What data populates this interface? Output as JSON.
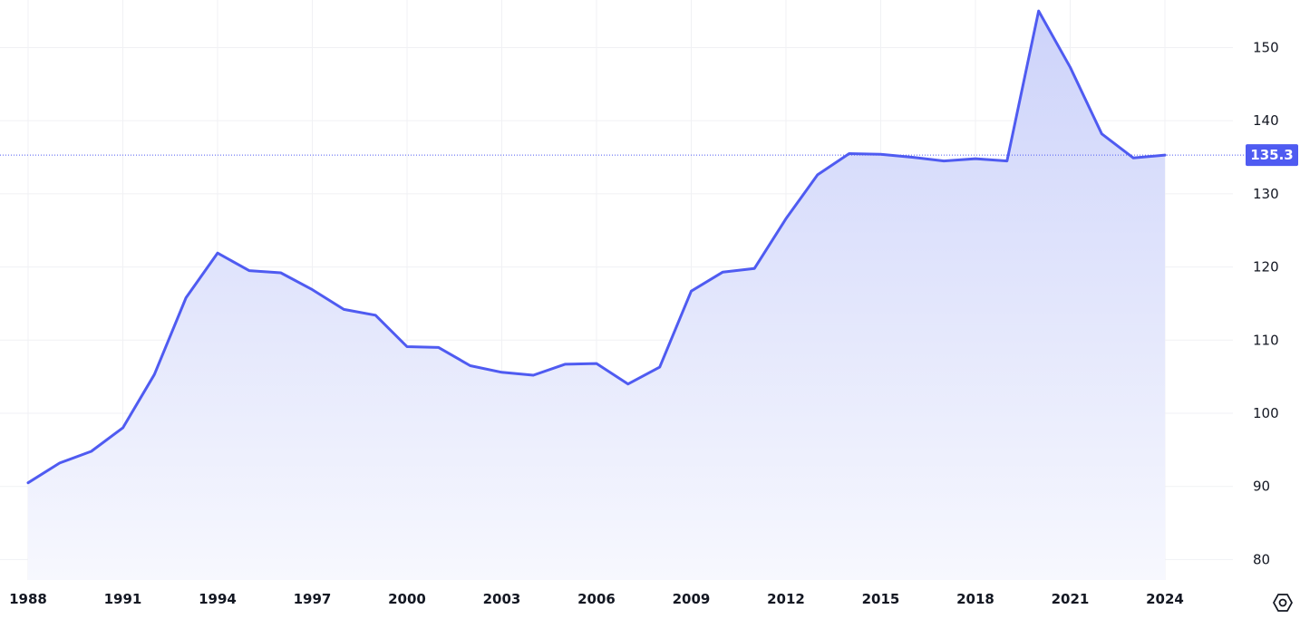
{
  "chart_data": {
    "type": "area",
    "title": "",
    "xlabel": "",
    "ylabel": "",
    "x": [
      1988,
      1989,
      1990,
      1991,
      1992,
      1993,
      1994,
      1995,
      1996,
      1997,
      1998,
      1999,
      2000,
      2001,
      2002,
      2003,
      2004,
      2005,
      2006,
      2007,
      2008,
      2009,
      2010,
      2011,
      2012,
      2013,
      2014,
      2015,
      2016,
      2017,
      2018,
      2019,
      2020,
      2021,
      2022,
      2023,
      2024
    ],
    "series": [
      {
        "values": [
          90.5,
          93.2,
          94.8,
          98.0,
          105.3,
          115.8,
          121.9,
          119.5,
          119.2,
          116.9,
          114.2,
          113.4,
          109.1,
          109.0,
          106.5,
          105.6,
          105.2,
          106.7,
          106.8,
          104.0,
          106.3,
          116.7,
          119.3,
          119.8,
          126.6,
          132.6,
          135.5,
          135.4,
          135.0,
          134.5,
          134.8,
          134.5,
          155.0,
          147.3,
          138.2,
          134.9,
          135.3
        ]
      }
    ],
    "xlim": [
      1988,
      2024
    ],
    "ylim": [
      77.2,
      156.5
    ],
    "x_tick_labels": [
      "1988",
      "1991",
      "1994",
      "1997",
      "2000",
      "2003",
      "2006",
      "2009",
      "2012",
      "2015",
      "2018",
      "2021",
      "2024"
    ],
    "y_tick_labels": [
      "80",
      "90",
      "100",
      "110",
      "120",
      "130",
      "140",
      "150"
    ],
    "last_value_label": "135.3",
    "grid": true,
    "legend": "none",
    "colors": {
      "line": "#4f5bf1",
      "fill_top": "#cdd3fa",
      "fill_bottom": "#f7f8fe",
      "grid": "#f0f1f4",
      "label_bg": "#4f5bf1"
    }
  },
  "icons": {
    "settings": "settings-gear-icon"
  }
}
